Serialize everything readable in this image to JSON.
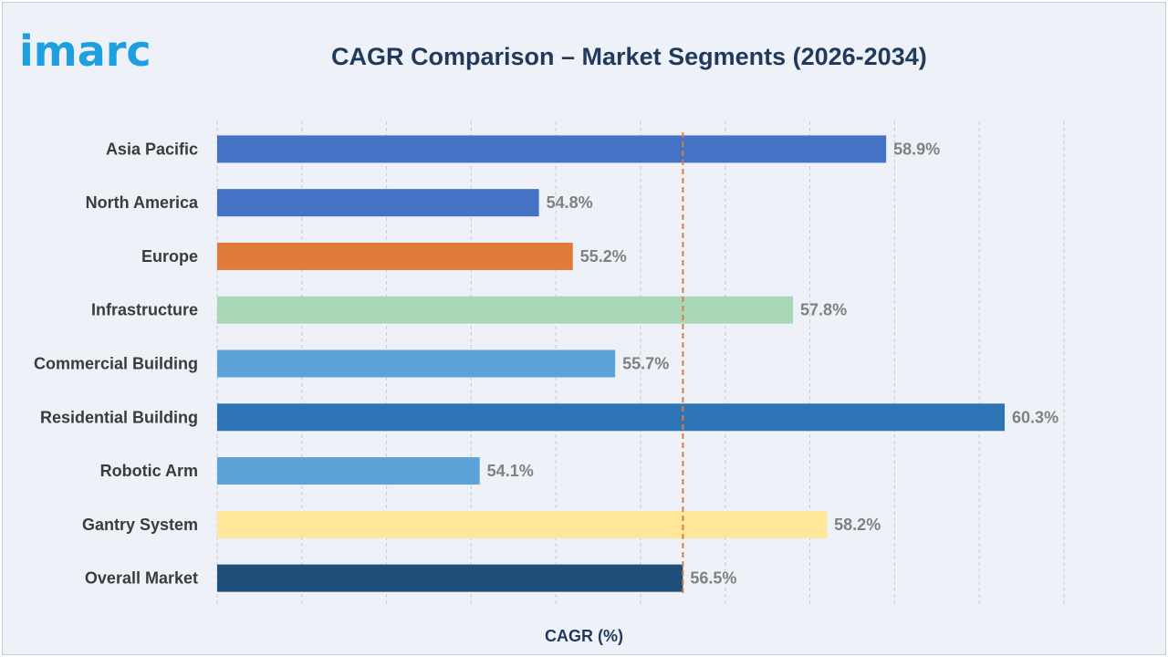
{
  "logo": {
    "text": "imarc",
    "color": "#1e9fe0"
  },
  "chart_data": {
    "type": "bar",
    "orientation": "horizontal",
    "title": "CAGR Comparison – Market Segments (2026-2034)",
    "xlabel": "CAGR (%)",
    "ylabel": "",
    "categories": [
      "Asia Pacific",
      "North America",
      "Europe",
      "Infrastructure",
      "Commercial Building",
      "Residential Building",
      "Robotic Arm",
      "Gantry System",
      "Overall Market"
    ],
    "values": [
      58.9,
      54.8,
      55.2,
      57.8,
      55.7,
      60.3,
      54.1,
      58.2,
      56.5
    ],
    "value_labels": [
      "58.9%",
      "54.8%",
      "55.2%",
      "57.8%",
      "55.7%",
      "60.3%",
      "54.1%",
      "58.2%",
      "56.5%"
    ],
    "colors": [
      "#4472c4",
      "#4472c4",
      "#e07b39",
      "#a9d8b8",
      "#5ba3d9",
      "#2e75b6",
      "#5ba3d9",
      "#ffe699",
      "#1f4e79"
    ],
    "xlim": [
      51.0,
      61.0
    ],
    "reference_line": {
      "value": 56.5,
      "color": "#e07b39",
      "style": "dashed"
    },
    "grid": true
  }
}
